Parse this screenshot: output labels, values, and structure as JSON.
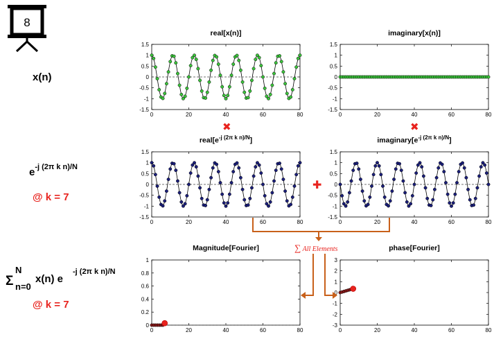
{
  "slide_number": "8",
  "rows": {
    "signal": {
      "label": "x(n)"
    },
    "kernel": {
      "label_base": "e",
      "label_exp": "-j (2π k n)/N",
      "k_label": "@ k = 7"
    },
    "sum": {
      "sigma": "Σ",
      "upper": "N",
      "lower": "n=0",
      "term": "x(n) e",
      "term_exp": "-j (2π k n)/N",
      "k_label": "@ k = 7"
    }
  },
  "sum_annotation": {
    "symbol": "∑",
    "text": "All Elements"
  },
  "operators": {
    "multiply": "✖",
    "add": "✚"
  },
  "colors": {
    "green_marker": "#3cc43c",
    "navy_marker": "#1b1f7a",
    "red": "#e8231e",
    "orange_arrow": "#c8601a"
  },
  "chart_data": [
    {
      "id": "real-x",
      "type": "line",
      "title": "real[x(n)]",
      "title_parts": {
        "base": "real[x(n)]",
        "sup": ""
      },
      "xlim": [
        0,
        80
      ],
      "ylim": [
        -1.5,
        1.5
      ],
      "xticks": [
        0,
        20,
        40,
        60,
        80
      ],
      "yticks": [
        -1.5,
        -1,
        -0.5,
        0,
        0.5,
        1,
        1.5
      ],
      "ytick_labels": [
        "-1.5",
        "-1",
        "-0.5",
        "0",
        "0.5",
        "1",
        "1.5"
      ],
      "series": [
        {
          "formula": "cos(2*pi*7*n/80)",
          "n_range": [
            0,
            80
          ],
          "color": "#3cc43c",
          "marker": "circle"
        }
      ],
      "dashed_zero": true
    },
    {
      "id": "imag-x",
      "type": "line",
      "title": "imaginary[x(n)]",
      "title_parts": {
        "base": "imaginary[x(n)]",
        "sup": ""
      },
      "xlim": [
        0,
        80
      ],
      "ylim": [
        -1.5,
        1.5
      ],
      "xticks": [
        0,
        20,
        40,
        60,
        80
      ],
      "yticks": [
        -1.5,
        -1,
        -0.5,
        0,
        0.5,
        1,
        1.5
      ],
      "ytick_labels": [
        "-1.5",
        "-1",
        "-0.5",
        "0",
        "0.5",
        "1",
        "1.5"
      ],
      "series": [
        {
          "formula": "0",
          "n_range": [
            0,
            80
          ],
          "color": "#3cc43c",
          "marker": "circle"
        }
      ],
      "dashed_zero": true
    },
    {
      "id": "real-kernel",
      "type": "line",
      "title": "real[e",
      "title_parts": {
        "base": "real[e",
        "sup": "-j (2π k n)/N",
        "end": "]"
      },
      "xlim": [
        0,
        80
      ],
      "ylim": [
        -1.5,
        1.5
      ],
      "xticks": [
        0,
        20,
        40,
        60,
        80
      ],
      "yticks": [
        -1.5,
        -1,
        -0.5,
        0,
        0.5,
        1,
        1.5
      ],
      "ytick_labels": [
        "-1.5",
        "-1",
        "-0.5",
        "0",
        "0.5",
        "1",
        "1.5"
      ],
      "series": [
        {
          "formula": "cos(2*pi*7*n/80)",
          "n_range": [
            0,
            80
          ],
          "color": "#1b1f7a",
          "marker": "circle"
        }
      ],
      "dashed_zero": true
    },
    {
      "id": "imag-kernel",
      "type": "line",
      "title": "imaginary[e",
      "title_parts": {
        "base": "imaginary[e",
        "sup": "-j (2π k n)/N",
        "end": "]"
      },
      "xlim": [
        0,
        80
      ],
      "ylim": [
        -1.5,
        1.5
      ],
      "xticks": [
        0,
        20,
        40,
        60,
        80
      ],
      "yticks": [
        -1.5,
        -1,
        -0.5,
        0,
        0.5,
        1,
        1.5
      ],
      "ytick_labels": [
        "-1.5",
        "-1",
        "-0.5",
        "0",
        "0.5",
        "1",
        "1.5"
      ],
      "series": [
        {
          "formula": "-sin(2*pi*7*n/80)",
          "n_range": [
            0,
            80
          ],
          "color": "#1b1f7a",
          "marker": "circle"
        }
      ],
      "dashed_zero": true
    },
    {
      "id": "magnitude",
      "type": "line",
      "title": "Magnitude[Fourier]",
      "title_parts": {
        "base": "Magnitude[Fourier]",
        "sup": ""
      },
      "xlim": [
        0,
        80
      ],
      "ylim": [
        0,
        1
      ],
      "xticks": [
        0,
        20,
        40,
        60,
        80
      ],
      "yticks": [
        0,
        0.2,
        0.4,
        0.6,
        0.8,
        1
      ],
      "ytick_labels": [
        "0",
        "0.2",
        "0.4",
        "0.6",
        "0.8",
        "1"
      ],
      "points": {
        "x": [
          0,
          1,
          2,
          3,
          4,
          5,
          6,
          7
        ],
        "y": [
          0,
          0,
          0,
          0,
          0,
          0,
          0,
          0.03
        ]
      },
      "point_color": "#8b1a1a",
      "highlight": {
        "x": 7,
        "y": 0.03,
        "color": "#e8231e"
      },
      "dashed_zero": true
    },
    {
      "id": "phase",
      "type": "line",
      "title": "phase[Fourier]",
      "title_parts": {
        "base": "phase[Fourier]",
        "sup": ""
      },
      "xlim": [
        0,
        80
      ],
      "ylim": [
        -3,
        3
      ],
      "xticks": [
        0,
        20,
        40,
        60,
        80
      ],
      "yticks": [
        -3,
        -2,
        -1,
        0,
        1,
        2,
        3
      ],
      "ytick_labels": [
        "-3",
        "-2",
        "-1",
        "0",
        "1",
        "2",
        "3"
      ],
      "points": {
        "x": [
          0,
          1,
          2,
          3,
          4,
          5,
          6,
          7
        ],
        "y": [
          0,
          0.05,
          0.1,
          0.15,
          0.2,
          0.25,
          0.3,
          0.35
        ]
      },
      "point_color": "#8b1a1a",
      "highlight": {
        "x": 7,
        "y": 0.35,
        "color": "#e8231e"
      },
      "dashed_zero": false
    }
  ]
}
